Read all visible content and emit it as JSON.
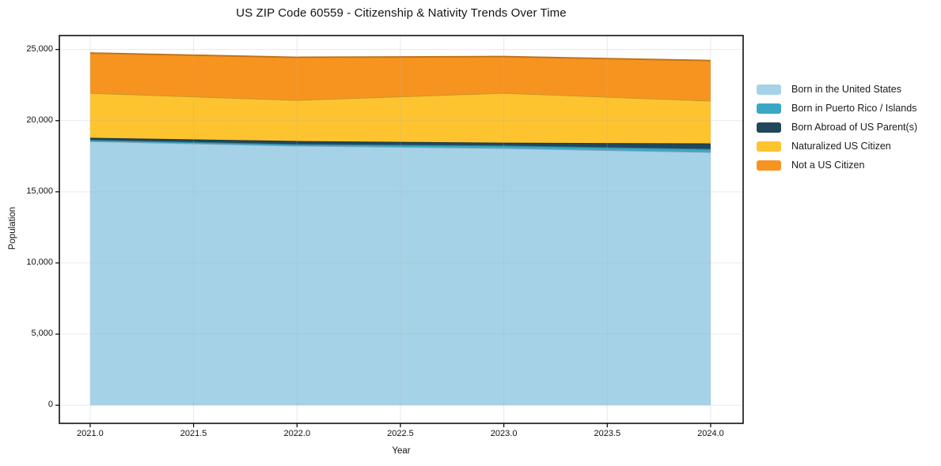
{
  "title": "US ZIP Code 60559 - Citizenship & Nativity Trends Over Time",
  "chart_data": {
    "type": "area",
    "stacked": true,
    "title": "US ZIP Code 60559 - Citizenship & Nativity Trends Over Time",
    "xlabel": "Year",
    "ylabel": "Population",
    "grid": true,
    "legend_position": "right-of-plot",
    "x": [
      2021,
      2022,
      2023,
      2024
    ],
    "series": [
      {
        "name": "Born in the United States",
        "color": "#a6d2e8",
        "values": [
          18550,
          18240,
          18070,
          17790
        ]
      },
      {
        "name": "Born in Puerto Rico / Islands",
        "color": "#3aa7c6",
        "values": [
          100,
          110,
          180,
          225
        ]
      },
      {
        "name": "Born Abroad of US Parent(s)",
        "color": "#20485a",
        "values": [
          150,
          220,
          200,
          385
        ]
      },
      {
        "name": "Naturalized US Citizen",
        "color": "#fdc42f",
        "values": [
          3150,
          2880,
          3500,
          3000
        ]
      },
      {
        "name": "Not a US Citizen",
        "color": "#f79420",
        "values": [
          2800,
          3000,
          2550,
          2820
        ]
      }
    ],
    "totals_by_year": [
      24750,
      24450,
      24500,
      24220
    ],
    "x_ticks": [
      2021.0,
      2021.5,
      2022.0,
      2022.5,
      2023.0,
      2023.5,
      2024.0
    ],
    "x_tick_labels": [
      "2021.0",
      "2021.5",
      "2022.0",
      "2022.5",
      "2023.0",
      "2023.5",
      "2024.0"
    ],
    "y_ticks": [
      0,
      5000,
      10000,
      15000,
      20000,
      25000
    ],
    "y_tick_labels": [
      "0",
      "5,000",
      "10,000",
      "15,000",
      "20,000",
      "25,000"
    ],
    "xlim": [
      2020.851,
      2024.157
    ],
    "ylim": [
      -1270,
      25980
    ]
  }
}
